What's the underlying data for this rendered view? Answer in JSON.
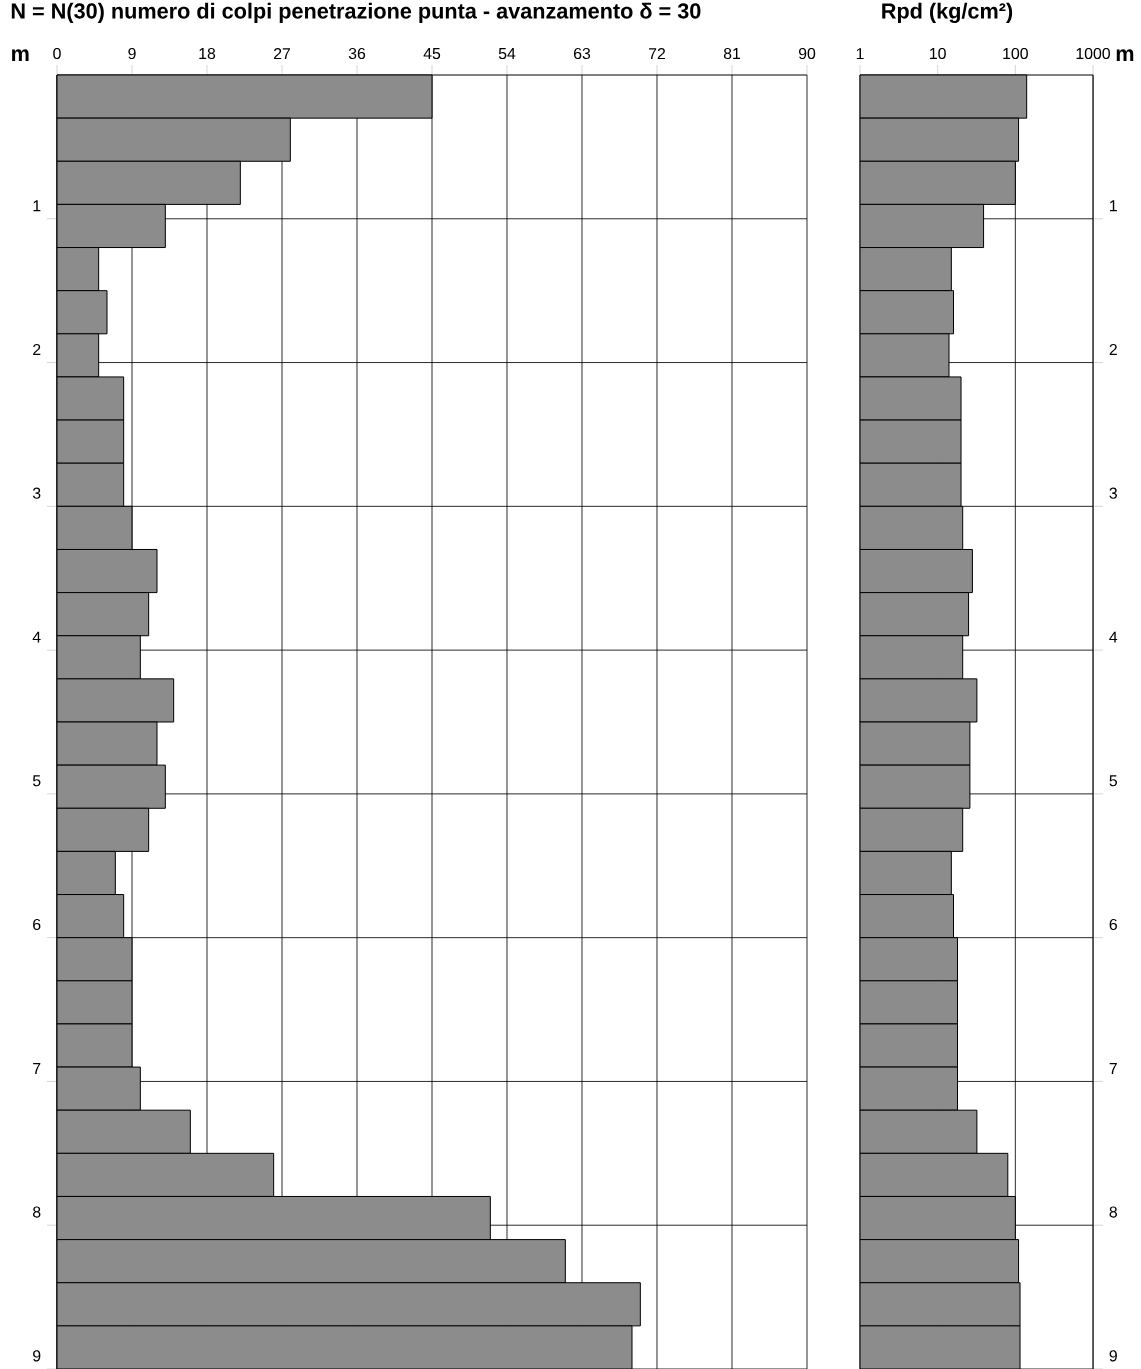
{
  "chart_data": [
    {
      "type": "histogram",
      "orientation": "horizontal",
      "title": "N = N(30)  numero di colpi penetrazione punta  -  avanzamento δ =  30",
      "ylabel": "m",
      "color": "#8c8c8c",
      "bins": [
        0,
        0.3,
        0.6,
        0.9,
        1.2,
        1.5,
        1.8,
        2.1,
        2.4,
        2.7,
        3.0,
        3.3,
        3.6,
        3.9,
        4.2,
        4.5,
        4.8,
        5.1,
        5.4,
        5.7,
        6.0,
        6.3,
        6.6,
        6.9,
        7.2,
        7.5,
        7.8,
        8.1,
        8.4,
        8.7,
        9.0
      ],
      "values": [
        45,
        28,
        22,
        13,
        5,
        6,
        5,
        8,
        8,
        8,
        9,
        12,
        11,
        10,
        14,
        12,
        13,
        11,
        7,
        8,
        9,
        9,
        9,
        10,
        16,
        26,
        52,
        61,
        70,
        69
      ],
      "xlim": [
        0,
        90
      ],
      "xticks": [
        0,
        9,
        18,
        27,
        36,
        45,
        54,
        63,
        72,
        81,
        90
      ],
      "ylim": [
        9,
        0
      ],
      "yticks": [
        1,
        2,
        3,
        4,
        5,
        6,
        7,
        8,
        9
      ],
      "grid": true
    },
    {
      "type": "histogram",
      "orientation": "horizontal",
      "title": "Rpd (kg/cm²)",
      "ylabel": "m",
      "color": "#8c8c8c",
      "log": "x",
      "bins": [
        0,
        0.3,
        0.6,
        0.9,
        1.2,
        1.5,
        1.8,
        2.1,
        2.4,
        2.7,
        3.0,
        3.3,
        3.6,
        3.9,
        4.2,
        4.5,
        4.8,
        5.1,
        5.4,
        5.7,
        6.0,
        6.3,
        6.6,
        6.9,
        7.2,
        7.5,
        7.8,
        8.1,
        8.4,
        8.7,
        9.0
      ],
      "values": [
        140,
        110,
        100,
        39,
        15,
        16,
        14,
        20,
        20,
        20,
        21,
        28,
        25,
        21,
        32,
        26,
        26,
        21,
        15,
        16,
        18,
        18,
        18,
        18,
        32,
        80,
        100,
        110,
        115,
        115
      ],
      "xlim": [
        1,
        1000
      ],
      "xticks": [
        1,
        10,
        100,
        1000
      ],
      "ylim": [
        9,
        0
      ],
      "yticks": [
        1,
        2,
        3,
        4,
        5,
        6,
        7,
        8,
        9
      ],
      "grid": true
    }
  ]
}
